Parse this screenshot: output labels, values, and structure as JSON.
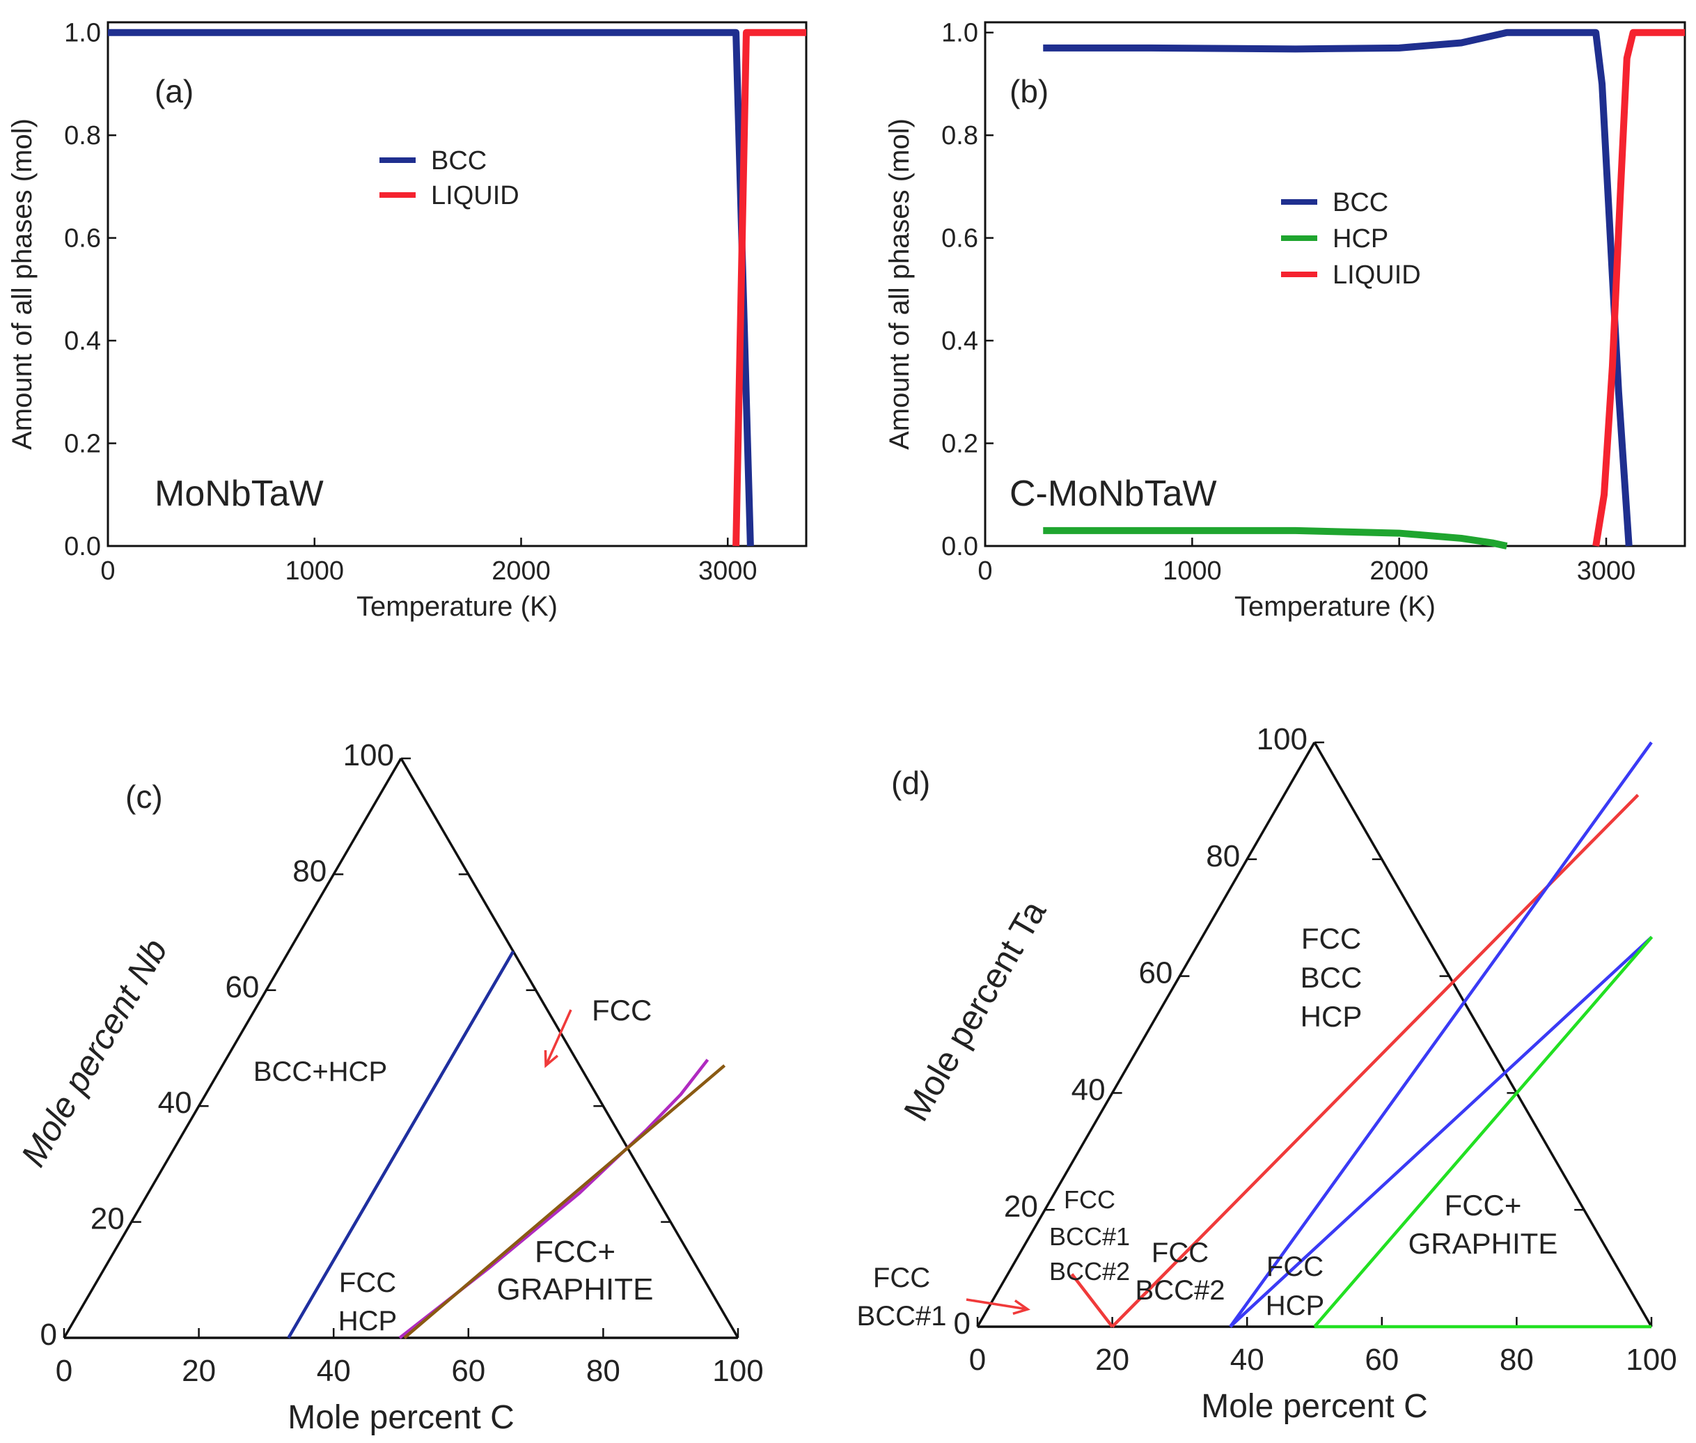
{
  "colors": {
    "bcc": "#1f2f8f",
    "liquid": "#f5232f",
    "hcp": "#1fa52f",
    "axis": "#111111",
    "c_blue": "#1f2f9f",
    "c_magenta": "#b02ac0",
    "c_brown": "#8a5a12",
    "d_red": "#f03a3a",
    "d_blue": "#3a3af5",
    "d_green": "#22e022",
    "arrow": "#f03a3a"
  },
  "chart_data": [
    {
      "panel": "(a)",
      "type": "line",
      "title": "MoNbTaW",
      "xlabel": "Temperature (K)",
      "ylabel": "Amount of all phases (mol)",
      "xlim": [
        0,
        3380
      ],
      "ylim": [
        0,
        1.02
      ],
      "xticks": [
        0,
        1000,
        2000,
        3000
      ],
      "xtick_labels": [
        "0",
        "1000",
        "2000",
        "3000"
      ],
      "yticks": [
        0,
        0.2,
        0.4,
        0.6,
        0.8,
        1.0
      ],
      "ytick_labels": [
        "0.0",
        "0.2",
        "0.4",
        "0.6",
        "0.8",
        "1.0"
      ],
      "legend": [
        "BCC",
        "LIQUID"
      ],
      "legend_position": "upper-center",
      "series": [
        {
          "name": "BCC",
          "color_key": "bcc",
          "x": [
            0,
            3040,
            3110
          ],
          "y": [
            1.0,
            1.0,
            0.0
          ]
        },
        {
          "name": "LIQUID",
          "color_key": "liquid",
          "x": [
            3040,
            3090,
            3380
          ],
          "y": [
            0.0,
            1.0,
            1.0
          ]
        }
      ]
    },
    {
      "panel": "(b)",
      "type": "line",
      "title": "C-MoNbTaW",
      "xlabel": "Temperature (K)",
      "ylabel": "Amount of all phases (mol)",
      "xlim": [
        0,
        3380
      ],
      "ylim": [
        0,
        1.02
      ],
      "xticks": [
        0,
        1000,
        2000,
        3000
      ],
      "xtick_labels": [
        "0",
        "1000",
        "2000",
        "3000"
      ],
      "yticks": [
        0,
        0.2,
        0.4,
        0.6,
        0.8,
        1.0
      ],
      "ytick_labels": [
        "0.0",
        "0.2",
        "0.4",
        "0.6",
        "0.8",
        "1.0"
      ],
      "legend": [
        "BCC",
        "HCP",
        "LIQUID"
      ],
      "legend_position": "center-right",
      "series": [
        {
          "name": "BCC",
          "color_key": "bcc",
          "x": [
            280,
            800,
            1500,
            2000,
            2300,
            2520,
            2550,
            2950,
            2980,
            3020,
            3060,
            3110
          ],
          "y": [
            0.97,
            0.97,
            0.968,
            0.97,
            0.98,
            1.0,
            1.0,
            1.0,
            0.9,
            0.6,
            0.3,
            0.0
          ]
        },
        {
          "name": "HCP",
          "color_key": "hcp",
          "x": [
            280,
            800,
            1500,
            2000,
            2300,
            2450,
            2520
          ],
          "y": [
            0.03,
            0.03,
            0.03,
            0.025,
            0.015,
            0.006,
            0.0
          ]
        },
        {
          "name": "LIQUID",
          "color_key": "liquid",
          "x": [
            2950,
            2990,
            3030,
            3070,
            3100,
            3130,
            3380
          ],
          "y": [
            0.0,
            0.1,
            0.35,
            0.7,
            0.95,
            1.0,
            1.0
          ]
        }
      ]
    },
    {
      "panel": "(c)",
      "type": "ternary",
      "ylabel": "Mole percent Nb",
      "xlabel": "Mole percent C",
      "ticks": [
        0,
        20,
        40,
        60,
        80,
        100
      ],
      "tick_labels": [
        "0",
        "20",
        "40",
        "60",
        "80",
        "100"
      ],
      "series": [
        {
          "name": "BCC+HCP / FCC+HCP boundary",
          "color_key": "c_blue",
          "C": [
            33.3,
            33.3
          ],
          "Nb": [
            0,
            66.7
          ]
        },
        {
          "name": "FCC+HCP / FCC boundary",
          "color_key": "c_magenta",
          "C": [
            49.8,
            57,
            64,
            68.5,
            70.5,
            71.5
          ],
          "Nb": [
            0,
            12,
            25,
            36,
            42,
            48
          ]
        },
        {
          "name": "FCC / FCC+GRAPHITE boundary",
          "color_key": "c_brown",
          "C": [
            50.5,
            74.5
          ],
          "Nb": [
            0,
            47
          ]
        }
      ],
      "region_labels": {
        "bcc_hcp": "BCC+HCP",
        "fcc": "FCC",
        "fcc_hcp_1": "FCC",
        "fcc_hcp_2": "HCP",
        "fcc_graphite_1": "FCC+",
        "fcc_graphite_2": "GRAPHITE"
      }
    },
    {
      "panel": "(d)",
      "type": "ternary",
      "ylabel": "Mole percent Ta",
      "xlabel": "Mole percent C",
      "ticks": [
        0,
        20,
        40,
        60,
        80,
        100
      ],
      "tick_labels": [
        "0",
        "20",
        "40",
        "60",
        "80",
        "100"
      ],
      "series": [
        {
          "name": "FCC+BCC#1 boundary",
          "color_key": "d_red",
          "C": [
            20,
            9.5
          ],
          "Nb": [
            0,
            9
          ]
        },
        {
          "name": "BCC#2 tie line",
          "color_key": "d_red",
          "C": [
            20,
            52.5
          ],
          "Nb": [
            0,
            91
          ]
        },
        {
          "name": "FCC+BCC#2 / FCC+BCC+HCP",
          "color_key": "d_blue",
          "C": [
            37.5,
            50
          ],
          "Nb": [
            0,
            100
          ]
        },
        {
          "name": "FCC+BCC+HCP / FCC+HCP",
          "color_key": "d_blue",
          "C": [
            37.5,
            66.7
          ],
          "Nb": [
            0,
            66.7
          ]
        },
        {
          "name": "FCC+HCP / FCC+GRAPHITE",
          "color_key": "d_green",
          "C": [
            50,
            66.7
          ],
          "Nb": [
            0,
            66.7
          ]
        },
        {
          "name": "C axis segment",
          "color_key": "d_green",
          "C": [
            50,
            100
          ],
          "Nb": [
            0,
            0
          ]
        }
      ],
      "region_labels": {
        "fcc_bcc_hcp_1": "FCC",
        "fcc_bcc_hcp_2": "BCC",
        "fcc_bcc_hcp_3": "HCP",
        "three_1": "FCC",
        "three_2": "BCC#1",
        "three_3": "BCC#2",
        "fcc_bcc2_1": "FCC",
        "fcc_bcc2_2": "BCC#2",
        "fcc_hcp_1": "FCC",
        "fcc_hcp_2": "HCP",
        "fcc_bcc1_1": "FCC",
        "fcc_bcc1_2": "BCC#1",
        "fcc_graphite_1": "FCC+",
        "fcc_graphite_2": "GRAPHITE"
      }
    }
  ]
}
